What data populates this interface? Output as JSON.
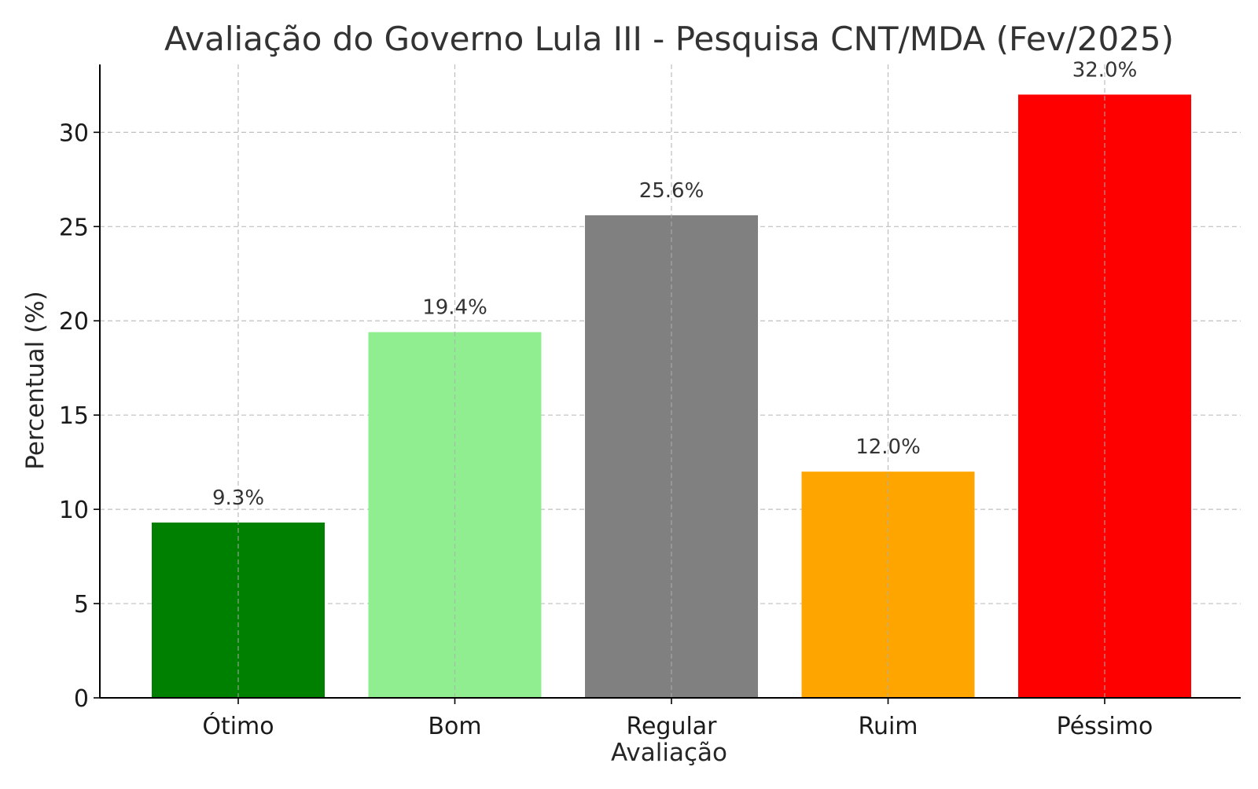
{
  "chart_data": {
    "type": "bar",
    "title": "Avaliação do Governo Lula III - Pesquisa CNT/MDA (Fev/2025)",
    "xlabel": "Avaliação",
    "ylabel": "Percentual (%)",
    "categories": [
      "Ótimo",
      "Bom",
      "Regular",
      "Ruim",
      "Péssimo"
    ],
    "values": [
      9.3,
      19.4,
      25.6,
      12.0,
      32.0
    ],
    "value_labels": [
      "9.3%",
      "19.4%",
      "25.6%",
      "12.0%",
      "32.0%"
    ],
    "colors": [
      "#008000",
      "#90ee90",
      "#808080",
      "#ffa500",
      "#ff0000"
    ],
    "ylim": [
      0,
      33.6
    ],
    "yticks": [
      0,
      5,
      10,
      15,
      20,
      25,
      30
    ],
    "grid": true,
    "legend": false
  }
}
